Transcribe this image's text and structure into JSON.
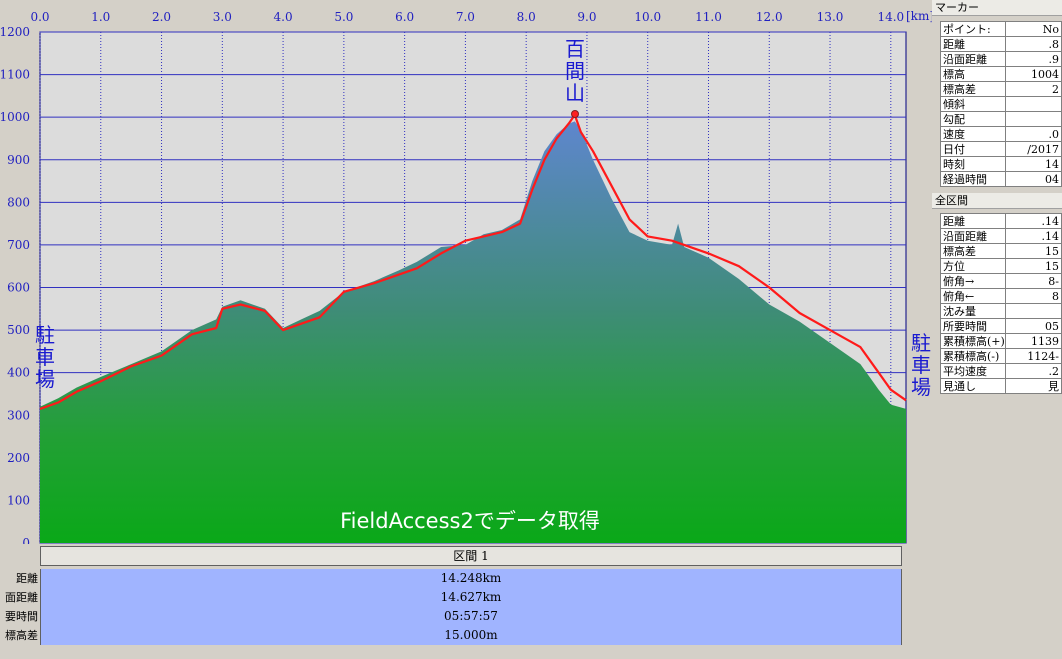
{
  "chart_data": {
    "type": "area",
    "xlabel": "",
    "ylabel": "",
    "x_unit": "[km]",
    "xlim": [
      0,
      14.25
    ],
    "ylim": [
      0,
      1200
    ],
    "x_ticks": [
      "0.0",
      "1.0",
      "2.0",
      "3.0",
      "4.0",
      "5.0",
      "6.0",
      "7.0",
      "8.0",
      "9.0",
      "10.0",
      "11.0",
      "12.0",
      "13.0",
      "14.0"
    ],
    "y_ticks": [
      "1200",
      "1100",
      "1000",
      "900",
      "800",
      "700",
      "600",
      "500",
      "400",
      "300",
      "200",
      "100",
      "0"
    ],
    "grid": true,
    "series": [
      {
        "color": "#2e9a3c",
        "x": [
          0,
          0.3,
          0.6,
          1.0,
          1.5,
          2.0,
          2.5,
          2.9,
          3.0,
          3.3,
          3.7,
          4.0,
          4.3,
          4.6,
          5.0,
          5.5,
          5.9,
          6.2,
          6.6,
          7.0,
          7.3,
          7.6,
          7.9,
          8.1,
          8.3,
          8.5,
          8.7,
          8.8,
          8.9,
          9.1,
          9.4,
          9.7,
          10.0,
          10.4,
          10.5,
          10.6,
          11.0,
          11.5,
          12.0,
          12.5,
          13.0,
          13.5,
          13.8,
          14.0,
          14.25
        ],
        "values": [
          320,
          340,
          365,
          390,
          420,
          450,
          500,
          525,
          555,
          570,
          550,
          505,
          525,
          545,
          590,
          615,
          640,
          660,
          695,
          700,
          725,
          735,
          760,
          850,
          920,
          960,
          985,
          990,
          970,
          900,
          810,
          730,
          710,
          700,
          750,
          695,
          670,
          620,
          560,
          520,
          470,
          420,
          360,
          325,
          315
        ]
      },
      {
        "color": "#ff1a1a",
        "x": [
          0,
          0.3,
          0.6,
          1.0,
          1.5,
          2.0,
          2.5,
          2.9,
          3.0,
          3.3,
          3.7,
          4.0,
          4.3,
          4.6,
          5.0,
          5.5,
          5.9,
          6.2,
          6.6,
          7.0,
          7.3,
          7.6,
          7.9,
          8.1,
          8.3,
          8.5,
          8.7,
          8.8,
          8.9,
          9.1,
          9.4,
          9.7,
          10.0,
          10.4,
          10.6,
          11.0,
          11.5,
          12.0,
          12.5,
          13.0,
          13.5,
          13.8,
          14.0,
          14.25
        ],
        "values": [
          315,
          330,
          355,
          380,
          415,
          440,
          490,
          505,
          550,
          560,
          545,
          500,
          515,
          530,
          590,
          610,
          630,
          645,
          680,
          710,
          720,
          730,
          750,
          830,
          900,
          950,
          985,
          1005,
          965,
          920,
          840,
          760,
          720,
          710,
          700,
          680,
          650,
          600,
          540,
          500,
          460,
          400,
          360,
          335
        ]
      }
    ],
    "annotations": [
      {
        "text": "百間山",
        "x": 8.8,
        "y": 1005
      },
      {
        "text": "駐車場",
        "x": 0,
        "y": 320
      },
      {
        "text": "駐車場",
        "x": 14.25,
        "y": 330
      }
    ],
    "watermark": "FieldAccess2でデータ取得"
  },
  "interval": {
    "header": "区間 1",
    "rows": [
      {
        "label": "距離",
        "value": "14.248km"
      },
      {
        "label": "面距離",
        "value": "14.627km"
      },
      {
        "label": "要時間",
        "value": "05:57:57"
      },
      {
        "label": "標高差",
        "value": "15.000m"
      }
    ]
  },
  "side": {
    "marker_title": "マーカー",
    "marker_rows": [
      {
        "k": "ポイント:",
        "v": "No"
      },
      {
        "k": "距離",
        "v": "8."
      },
      {
        "k": "沿面距離",
        "v": "9."
      },
      {
        "k": "標高",
        "v": "1004"
      },
      {
        "k": "標高差",
        "v": "2"
      },
      {
        "k": "傾斜",
        "v": ""
      },
      {
        "k": "勾配",
        "v": ""
      },
      {
        "k": "速度",
        "v": "0."
      },
      {
        "k": "日付",
        "v": "2017/"
      },
      {
        "k": "時刻",
        "v": "14"
      },
      {
        "k": "経過時間",
        "v": "04"
      }
    ],
    "total_title": "全区間",
    "total_rows": [
      {
        "k": "距離",
        "v": "14."
      },
      {
        "k": "沿面距離",
        "v": "14."
      },
      {
        "k": "標高差",
        "v": "15"
      },
      {
        "k": "方位",
        "v": "15"
      },
      {
        "k": "俯角→",
        "v": "-8"
      },
      {
        "k": "俯角←",
        "v": "8"
      },
      {
        "k": "沈み量",
        "v": ""
      },
      {
        "k": "所要時間",
        "v": "05"
      },
      {
        "k": "累積標高(+)",
        "v": "1139"
      },
      {
        "k": "累積標高(-)",
        "v": "-1124"
      },
      {
        "k": "平均速度",
        "v": "2."
      },
      {
        "k": "見通し",
        "v": "見"
      }
    ]
  }
}
